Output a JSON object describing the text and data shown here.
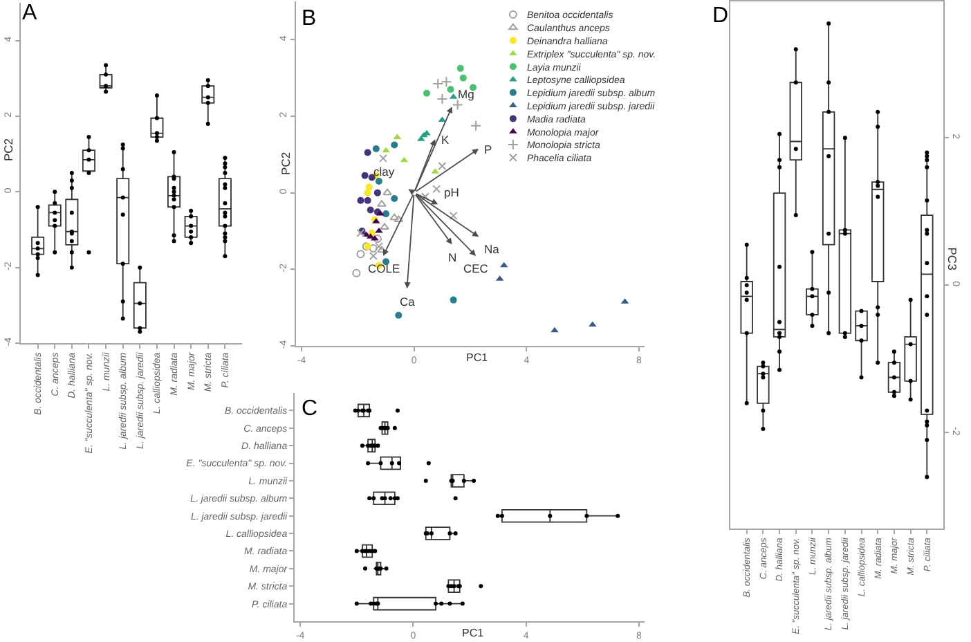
{
  "chart_data": [
    {
      "type": "box",
      "title": "A",
      "ylabel": "PC2",
      "categories": [
        "B. occidentalis",
        "C. anceps",
        "D. halliana",
        "E. \"succulenta\" sp. nov.",
        "L. munzii",
        "L. jaredii subsp. album",
        "L. jaredii subsp. jaredii",
        "L. calliopsidea",
        "M. radiata",
        "M. major",
        "M. stricta",
        "P. ciliata"
      ],
      "boxes": [
        {
          "low": -2.2,
          "q1": -1.65,
          "median": -1.5,
          "q3": -1.2,
          "high": -0.4
        },
        {
          "low": -1.6,
          "q1": -0.9,
          "median": -0.55,
          "q3": -0.35,
          "high": 0
        },
        {
          "low": -2.0,
          "q1": -1.4,
          "median": -1.05,
          "q3": -0.2,
          "high": 0.5
        },
        {
          "low": 0.5,
          "q1": 0.55,
          "median": 0.85,
          "q3": 1.1,
          "high": 1.45
        },
        {
          "low": 2.65,
          "q1": 2.75,
          "median": 2.8,
          "q3": 3.1,
          "high": 3.35
        },
        {
          "low": -3.35,
          "q1": -1.9,
          "median": -0.15,
          "q3": 0.35,
          "high": 1.25
        },
        {
          "low": -3.7,
          "q1": -3.6,
          "median": -2.95,
          "q3": -2.4,
          "high": -2.0
        },
        {
          "low": 1.35,
          "q1": 1.45,
          "median": 1.55,
          "q3": 1.95,
          "high": 2.55
        },
        {
          "low": -1.3,
          "q1": -0.4,
          "median": -0.1,
          "q3": 0.4,
          "high": 1.05
        },
        {
          "low": -1.35,
          "q1": -1.2,
          "median": -0.9,
          "q3": -0.65,
          "high": -0.5
        },
        {
          "low": 1.8,
          "q1": 2.35,
          "median": 2.5,
          "q3": 2.8,
          "high": 2.95
        },
        {
          "low": -1.7,
          "q1": -0.9,
          "median": -0.45,
          "q3": 0.35,
          "high": 0.9
        }
      ],
      "color": "#333333",
      "ylim": [
        -4,
        5
      ],
      "yticks": [
        -4,
        -2,
        0,
        2,
        4
      ],
      "series": [
        {
          "type": "scatter",
          "color": "#000000",
          "marker": "circle",
          "x": [
            "B. occidentalis",
            "B. occidentalis",
            "B. occidentalis",
            "B. occidentalis",
            "B. occidentalis",
            "B. occidentalis",
            "C. anceps",
            "C. anceps",
            "C. anceps",
            "C. anceps",
            "C. anceps",
            "C. anceps",
            "D. halliana",
            "D. halliana",
            "D. halliana",
            "D. halliana",
            "D. halliana",
            "D. halliana",
            "D. halliana",
            "D. halliana",
            "D. halliana",
            "E. \"succulenta\" sp. nov.",
            "E. \"succulenta\" sp. nov.",
            "E. \"succulenta\" sp. nov.",
            "E. \"succulenta\" sp. nov.",
            "E. \"succulenta\" sp. nov.",
            "L. munzii",
            "L. munzii",
            "L. munzii",
            "L. munzii",
            "L. jaredii subsp. album",
            "L. jaredii subsp. album",
            "L. jaredii subsp. album",
            "L. jaredii subsp. album",
            "L. jaredii subsp. album",
            "L. jaredii subsp. album",
            "L. jaredii subsp. album",
            "L. jaredii subsp. album",
            "L. jaredii subsp. jaredii",
            "L. jaredii subsp. jaredii",
            "L. jaredii subsp. jaredii",
            "L. jaredii subsp. jaredii",
            "L. calliopsidea",
            "L. calliopsidea",
            "L. calliopsidea",
            "L. calliopsidea",
            "L. calliopsidea",
            "M. radiata",
            "M. radiata",
            "M. radiata",
            "M. radiata",
            "M. radiata",
            "M. radiata",
            "M. radiata",
            "M. radiata",
            "M. radiata",
            "M. radiata",
            "M. major",
            "M. major",
            "M. major",
            "M. major",
            "M. major",
            "M. major",
            "M. stricta",
            "M. stricta",
            "M. stricta",
            "M. stricta",
            "M. stricta",
            "P. ciliata",
            "P. ciliata",
            "P. ciliata",
            "P. ciliata",
            "P. ciliata",
            "P. ciliata",
            "P. ciliata",
            "P. ciliata",
            "P. ciliata",
            "P. ciliata",
            "P. ciliata",
            "P. ciliata",
            "P. ciliata",
            "P. ciliata"
          ],
          "values": [
            -0.4,
            -1.35,
            -1.5,
            -1.65,
            -1.75,
            -2.2,
            0,
            -0.3,
            -0.55,
            -0.75,
            -0.9,
            -1.6,
            0.5,
            0.3,
            0.1,
            -0.55,
            -1.05,
            -1.1,
            -1.3,
            -1.6,
            -2.0,
            1.45,
            1.1,
            0.85,
            0.5,
            -1.6,
            3.35,
            3.1,
            2.8,
            2.65,
            1.25,
            1.15,
            0.6,
            -0.15,
            -0.6,
            -1.9,
            -2.9,
            -3.35,
            -2.0,
            -2.95,
            -3.6,
            -3.7,
            2.55,
            1.95,
            1.55,
            1.45,
            1.35,
            1.05,
            0.4,
            0.35,
            0.1,
            0,
            -0.1,
            -0.2,
            -0.4,
            -1.15,
            -1.3,
            -0.5,
            -0.65,
            -0.9,
            -1.05,
            -1.2,
            -1.35,
            2.95,
            2.8,
            2.5,
            2.35,
            1.8,
            0.9,
            0.75,
            0.65,
            0.5,
            0.2,
            0.1,
            -0.3,
            -0.55,
            -0.65,
            -0.9,
            -1.1,
            -1.2,
            -1.3,
            -1.7
          ]
        }
      ]
    },
    {
      "type": "scatter",
      "title": "B",
      "xlabel": "PC1",
      "ylabel": "PC2",
      "xlim": [
        -4.2,
        8.2
      ],
      "xticks": [
        -4,
        0,
        4,
        8
      ],
      "ylim": [
        -4,
        5
      ],
      "yticks": [
        -4,
        -2,
        0,
        2,
        4
      ],
      "legend": "top right",
      "series": [
        {
          "type": "scatter",
          "name": "Benitoa occidentalis",
          "color": "#a0a0a0",
          "marker": "circle-open",
          "x": [
            -1.9,
            -2.05,
            -1.7,
            -1.45,
            -1.3
          ],
          "values": [
            -1.6,
            -2.1,
            -1.4,
            -1.45,
            -1.2
          ]
        },
        {
          "type": "scatter",
          "name": "Caulanthus anceps",
          "color": "#a0a0a0",
          "marker": "triangle-open",
          "x": [
            -0.95,
            -0.7,
            -0.55,
            -1.15,
            -1.05,
            -1.15
          ],
          "values": [
            0,
            -0.65,
            -0.7,
            -0.3,
            -0.9,
            -1.5
          ]
        },
        {
          "type": "scatter",
          "name": "Deinandra halliana",
          "color": "#fde725",
          "marker": "circle",
          "x": [
            -1.35,
            -1.6,
            -1.65,
            -1.4,
            -1.5,
            -1.65,
            -1.25
          ],
          "values": [
            0.45,
            0.15,
            0,
            -0.7,
            -1.05,
            -1.4,
            -1.9
          ]
        },
        {
          "type": "scatter",
          "name": "Extriplex \"succulenta\" sp. nov.",
          "color": "#9fda3a",
          "marker": "triangle",
          "x": [
            -0.6,
            -1.0,
            -0.35,
            0.75
          ],
          "values": [
            1.45,
            1.1,
            0.85,
            0.55
          ]
        },
        {
          "type": "scatter",
          "name": "Layia munzii",
          "color": "#4ac16d",
          "marker": "circle",
          "x": [
            1.65,
            1.75,
            2.1,
            1.3,
            0.45
          ],
          "values": [
            3.25,
            3.0,
            2.75,
            2.7,
            2.6
          ]
        },
        {
          "type": "scatter",
          "name": "Leptosyne calliopsidea",
          "color": "#1fa187",
          "marker": "triangle",
          "x": [
            0.35,
            0.45,
            0.25,
            1.4,
            1.0
          ],
          "values": [
            1.5,
            1.55,
            1.4,
            2.5,
            1.9
          ]
        },
        {
          "type": "scatter",
          "name": "Lepidium jaredii subsp. album",
          "color": "#277f8e",
          "marker": "circle",
          "x": [
            -1.35,
            -0.7,
            -1.25,
            -1.0,
            -0.7,
            -1.0,
            1.4,
            -0.55
          ],
          "values": [
            1.15,
            1.25,
            0.3,
            -0.55,
            -0.15,
            -1.8,
            -2.8,
            -3.2
          ]
        },
        {
          "type": "scatter",
          "name": "Lepidium jaredii subsp. jaredii",
          "color": "#365c8d",
          "marker": "triangle",
          "x": [
            3.2,
            3.05,
            7.5,
            6.35,
            5.0
          ],
          "values": [
            -1.9,
            -2.25,
            -2.85,
            -3.45,
            -3.6
          ]
        },
        {
          "type": "scatter",
          "name": "Madia radiata",
          "color": "#46337e",
          "marker": "circle",
          "x": [
            -1.65,
            -1.75,
            -1.5,
            -1.9,
            -1.55,
            -1.3,
            -1.65,
            -1.85,
            -1.3
          ],
          "values": [
            1.05,
            0.45,
            0.4,
            -0.2,
            -0.45,
            0,
            -0.2,
            -1.0,
            -0.5
          ]
        },
        {
          "type": "scatter",
          "name": "Monolopia major",
          "color": "#440154",
          "marker": "triangle",
          "x": [
            -1.35,
            -1.2,
            -1.7,
            -1.4,
            -1.25,
            -1.55
          ],
          "values": [
            -0.75,
            -0.55,
            -1.1,
            -1.2,
            -1.0,
            -1.15
          ]
        },
        {
          "type": "scatter",
          "name": "Monolopia stricta",
          "color": "#a0a0a0",
          "marker": "cross",
          "x": [
            1.15,
            1.0,
            1.55,
            2.2,
            0.85
          ],
          "values": [
            2.9,
            2.45,
            2.3,
            1.75,
            2.85
          ]
        },
        {
          "type": "scatter",
          "name": "Phacelia ciliata",
          "color": "#a0a0a0",
          "marker": "x",
          "x": [
            -1.1,
            1.0,
            0.8,
            -1.25,
            -1.9,
            -1.45,
            1.4,
            0.4
          ],
          "values": [
            0.9,
            0.7,
            0.1,
            -1.4,
            -1.05,
            -1.65,
            -0.6,
            -0.1
          ]
        }
      ],
      "annotations": [
        "Mg",
        "K",
        "P",
        "clay",
        "pH",
        "Na",
        "CEC",
        "N",
        "COLE",
        "Ca"
      ]
    },
    {
      "type": "box",
      "orientation": "horizontal",
      "title": "C",
      "xlabel": "PC1",
      "categories": [
        "B. occidentalis",
        "C. anceps",
        "D. halliana",
        "E. \"succulenta\" sp. nov.",
        "L. munzii",
        "L. jaredii subsp. album",
        "L. jaredii subsp. jaredii",
        "L. calliopsidea",
        "M. radiata",
        "M. major",
        "M. stricta",
        "P. ciliata"
      ],
      "boxes": [
        {
          "low": -2.05,
          "q1": -1.95,
          "median": -1.75,
          "q3": -1.55,
          "high": -1.5
        },
        {
          "low": -1.15,
          "q1": -1.1,
          "median": -1.0,
          "q3": -0.9,
          "high": -0.85
        },
        {
          "low": -1.8,
          "q1": -1.6,
          "median": -1.45,
          "q3": -1.35,
          "high": -1.25
        },
        {
          "low": -1.6,
          "q1": -1.15,
          "median": -0.75,
          "q3": -0.45,
          "high": -0.45
        },
        {
          "low": 1.35,
          "q1": 1.35,
          "median": 1.4,
          "q3": 1.8,
          "high": 2.15
        },
        {
          "low": -1.55,
          "q1": -1.4,
          "median": -1.0,
          "q3": -0.65,
          "high": -0.55
        },
        {
          "low": 3.0,
          "q1": 3.15,
          "median": 4.85,
          "q3": 6.15,
          "high": 7.25
        },
        {
          "low": 0.45,
          "q1": 0.45,
          "median": 0.65,
          "q3": 1.3,
          "high": 1.5
        },
        {
          "low": -2.0,
          "q1": -1.8,
          "median": -1.65,
          "q3": -1.45,
          "high": -1.35
        },
        {
          "low": -1.4,
          "q1": -1.3,
          "median": -1.25,
          "q3": -1.15,
          "high": -0.95
        },
        {
          "low": 1.25,
          "q1": 1.25,
          "median": 1.45,
          "q3": 1.65,
          "high": 1.7
        },
        {
          "low": -2.0,
          "q1": -1.4,
          "median": -1.25,
          "q3": 0.8,
          "high": 1.75
        }
      ],
      "color": "#333333",
      "xlim": [
        -4.2,
        8.2
      ],
      "xticks": [
        -4,
        0,
        4,
        8
      ],
      "series": [
        {
          "type": "scatter",
          "color": "#000000",
          "marker": "circle",
          "x": [
            "B. occidentalis",
            "B. occidentalis",
            "B. occidentalis",
            "B. occidentalis",
            "B. occidentalis",
            "B. occidentalis",
            "B. occidentalis",
            "C. anceps",
            "C. anceps",
            "C. anceps",
            "C. anceps",
            "C. anceps",
            "C. anceps",
            "C. anceps",
            "D. halliana",
            "D. halliana",
            "D. halliana",
            "D. halliana",
            "D. halliana",
            "D. halliana",
            "D. halliana",
            "E. \"succulenta\" sp. nov.",
            "E. \"succulenta\" sp. nov.",
            "E. \"succulenta\" sp. nov.",
            "E. \"succulenta\" sp. nov.",
            "E. \"succulenta\" sp. nov.",
            "L. munzii",
            "L. munzii",
            "L. munzii",
            "L. munzii",
            "L. munzii",
            "L. jaredii subsp. album",
            "L. jaredii subsp. album",
            "L. jaredii subsp. album",
            "L. jaredii subsp. album",
            "L. jaredii subsp. album",
            "L. jaredii subsp. album",
            "L. jaredii subsp. album",
            "L. jaredii subsp. album",
            "L. jaredii subsp. jaredii",
            "L. jaredii subsp. jaredii",
            "L. jaredii subsp. jaredii",
            "L. jaredii subsp. jaredii",
            "L. jaredii subsp. jaredii",
            "L. calliopsidea",
            "L. calliopsidea",
            "L. calliopsidea",
            "L. calliopsidea",
            "L. calliopsidea",
            "M. radiata",
            "M. radiata",
            "M. radiata",
            "M. radiata",
            "M. radiata",
            "M. radiata",
            "M. radiata",
            "M. major",
            "M. major",
            "M. major",
            "M. major",
            "M. major",
            "M. major",
            "M. stricta",
            "M. stricta",
            "M. stricta",
            "M. stricta",
            "M. stricta",
            "M. stricta",
            "P. ciliata",
            "P. ciliata",
            "P. ciliata",
            "P. ciliata",
            "P. ciliata",
            "P. ciliata",
            "P. ciliata",
            "P. ciliata",
            "P. ciliata"
          ],
          "values": [
            -2.05,
            -1.95,
            -1.8,
            -1.75,
            -1.6,
            -1.55,
            -0.55,
            -1.15,
            -1.1,
            -1.05,
            -1.0,
            -0.95,
            -0.9,
            -0.65,
            -1.8,
            -1.6,
            -1.5,
            -1.45,
            -1.4,
            -1.35,
            -1.25,
            -1.6,
            -1.15,
            -0.75,
            -0.5,
            0.55,
            0.45,
            1.35,
            1.4,
            1.8,
            2.15,
            -1.55,
            -1.4,
            -1.1,
            -1.0,
            -0.8,
            -0.65,
            -0.55,
            1.5,
            3.0,
            3.15,
            4.85,
            6.15,
            7.25,
            0.45,
            0.5,
            0.65,
            1.3,
            1.5,
            -2.0,
            -1.8,
            -1.7,
            -1.65,
            -1.55,
            -1.45,
            -1.35,
            -1.7,
            -1.3,
            -1.25,
            -1.2,
            -1.15,
            -0.95,
            1.25,
            1.35,
            1.45,
            1.6,
            1.65,
            2.4,
            -2.0,
            -1.5,
            -1.4,
            -1.3,
            -1.25,
            0.8,
            1.0,
            1.3,
            1.75
          ]
        }
      ]
    },
    {
      "type": "box",
      "title": "D",
      "ylabel": "PC3",
      "categories": [
        "B. occidentalis",
        "C. anceps",
        "D. halliana",
        "E. \"succulenta\" sp. nov.",
        "L. munzii",
        "L. jaredii subsp. album",
        "L. jaredii subsp. jaredii",
        "L. calliopsidea",
        "M. radiata",
        "M. major",
        "M. stricta",
        "P. ciliata"
      ],
      "boxes": [
        {
          "low": -1.6,
          "q1": -0.65,
          "median": -0.15,
          "q3": 0.05,
          "high": 0.55
        },
        {
          "low": -1.95,
          "q1": -1.6,
          "median": -1.2,
          "q3": -1.1,
          "high": -1.05
        },
        {
          "low": -1.15,
          "q1": -0.7,
          "median": -0.6,
          "q3": 1.25,
          "high": 2.05
        },
        {
          "low": 0.95,
          "q1": 1.7,
          "median": 1.95,
          "q3": 2.75,
          "high": 3.2
        },
        {
          "low": -0.55,
          "q1": -0.4,
          "median": -0.15,
          "q3": -0.05,
          "high": 0.45
        },
        {
          "low": -0.65,
          "q1": 0.55,
          "median": 1.85,
          "q3": 2.35,
          "high": 3.55
        },
        {
          "low": -0.7,
          "q1": -0.65,
          "median": 0.7,
          "q3": 0.75,
          "high": 2.0
        },
        {
          "low": -1.25,
          "q1": -0.75,
          "median": -0.55,
          "q3": -0.35,
          "high": -0.35
        },
        {
          "low": -1.05,
          "q1": 0.05,
          "median": 1.3,
          "q3": 1.4,
          "high": 2.35
        },
        {
          "low": -1.5,
          "q1": -1.45,
          "median": -1.25,
          "q3": -1.05,
          "high": -0.9
        },
        {
          "low": -1.55,
          "q1": -1.3,
          "median": -0.8,
          "q3": -0.7,
          "high": -0.2
        },
        {
          "low": -2.6,
          "q1": -1.75,
          "median": 0.15,
          "q3": 0.95,
          "high": 1.8
        }
      ],
      "color": "#333333",
      "ylim": [
        -3.3,
        3.85
      ],
      "yticks": [
        -2,
        0,
        2
      ],
      "series": [
        {
          "type": "scatter",
          "color": "#000000",
          "marker": "circle",
          "x": [
            "B. occidentalis",
            "B. occidentalis",
            "B. occidentalis",
            "B. occidentalis",
            "B. occidentalis",
            "B. occidentalis",
            "B. occidentalis",
            "C. anceps",
            "C. anceps",
            "C. anceps",
            "C. anceps",
            "C. anceps",
            "C. anceps",
            "D. halliana",
            "D. halliana",
            "D. halliana",
            "D. halliana",
            "D. halliana",
            "D. halliana",
            "D. halliana",
            "D. halliana",
            "D. halliana",
            "E. \"succulenta\" sp. nov.",
            "E. \"succulenta\" sp. nov.",
            "E. \"succulenta\" sp. nov.",
            "E. \"succulenta\" sp. nov.",
            "L. munzii",
            "L. munzii",
            "L. munzii",
            "L. munzii",
            "L. munzii",
            "L. jaredii subsp. album",
            "L. jaredii subsp. album",
            "L. jaredii subsp. album",
            "L. jaredii subsp. album",
            "L. jaredii subsp. album",
            "L. jaredii subsp. album",
            "L. jaredii subsp. album",
            "L. jaredii subsp. jaredii",
            "L. jaredii subsp. jaredii",
            "L. jaredii subsp. jaredii",
            "L. jaredii subsp. jaredii",
            "L. jaredii subsp. jaredii",
            "L. calliopsidea",
            "L. calliopsidea",
            "L. calliopsidea",
            "L. calliopsidea",
            "M. radiata",
            "M. radiata",
            "M. radiata",
            "M. radiata",
            "M. radiata",
            "M. radiata",
            "M. radiata",
            "M. radiata",
            "M. major",
            "M. major",
            "M. major",
            "M. major",
            "M. major",
            "M. stricta",
            "M. stricta",
            "M. stricta",
            "M. stricta",
            "P. ciliata",
            "P. ciliata",
            "P. ciliata",
            "P. ciliata",
            "P. ciliata",
            "P. ciliata",
            "P. ciliata",
            "P. ciliata",
            "P. ciliata",
            "P. ciliata",
            "P. ciliata",
            "P. ciliata",
            "P. ciliata",
            "P. ciliata",
            "P. ciliata"
          ],
          "values": [
            0.55,
            0.1,
            0,
            -0.1,
            -0.2,
            -0.65,
            -1.6,
            -1.05,
            -1.1,
            -1.2,
            -1.25,
            -1.7,
            -1.95,
            2.05,
            1.7,
            1.6,
            0.25,
            -0.5,
            -0.65,
            -0.7,
            -0.9,
            -1.15,
            3.2,
            2.75,
            1.85,
            0.95,
            0.45,
            -0.05,
            -0.15,
            -0.4,
            -0.55,
            3.55,
            2.75,
            2.35,
            1.75,
            0.7,
            -0.1,
            -0.65,
            2.0,
            0.75,
            0.7,
            -0.65,
            -0.7,
            -0.35,
            -0.55,
            -0.75,
            -1.25,
            2.35,
            2.15,
            1.4,
            1.35,
            1.2,
            -0.3,
            -0.4,
            -1.05,
            -0.9,
            -1.05,
            -1.25,
            -1.45,
            -1.5,
            -0.2,
            -0.8,
            -1.3,
            -1.55,
            1.8,
            1.75,
            1.7,
            1.6,
            1.15,
            0.75,
            0.7,
            0.3,
            -0.15,
            -0.4,
            -1.7,
            -1.85,
            -1.9,
            -2.1,
            -2.6
          ]
        }
      ]
    }
  ]
}
